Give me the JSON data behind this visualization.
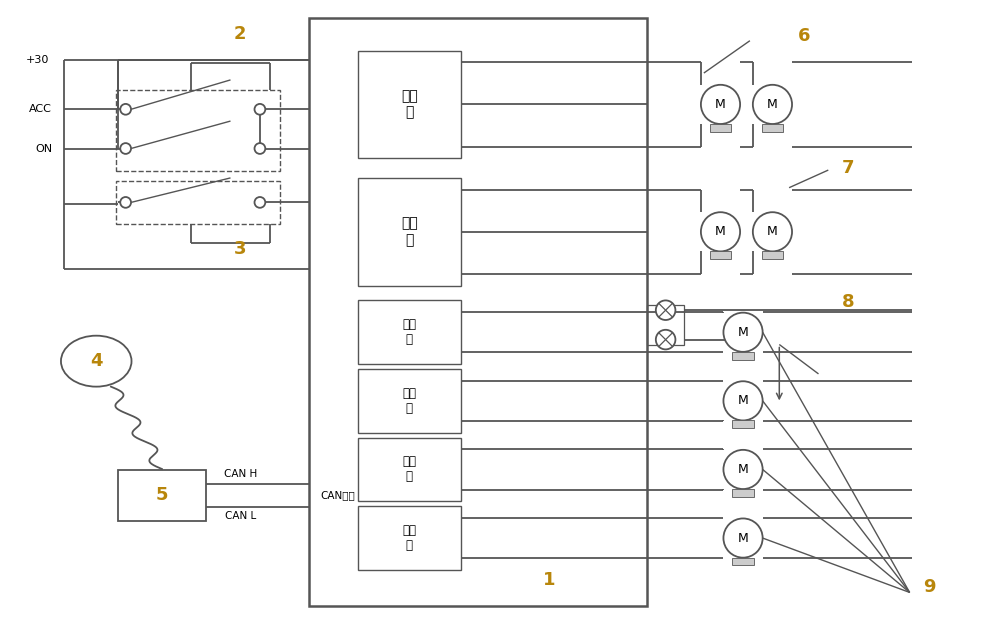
{
  "bg_color": "#ffffff",
  "line_color": "#555555",
  "text_color": "#000000",
  "label_color": "#b8860b",
  "labels": {
    "plus30": "+30",
    "acc": "ACC",
    "on": "ON",
    "canh": "CAN H",
    "canl": "CAN L",
    "can_port": "CAN接口",
    "relay_text": "继电\n器",
    "n1": "1",
    "n2": "2",
    "n3": "3",
    "n4": "4",
    "n5": "5",
    "n6": "6",
    "n7": "7",
    "n8": "8",
    "n9": "9"
  },
  "figsize": [
    10.0,
    6.4
  ],
  "dpi": 100,
  "xlim": [
    0,
    10
  ],
  "ylim": [
    0,
    6.4
  ]
}
